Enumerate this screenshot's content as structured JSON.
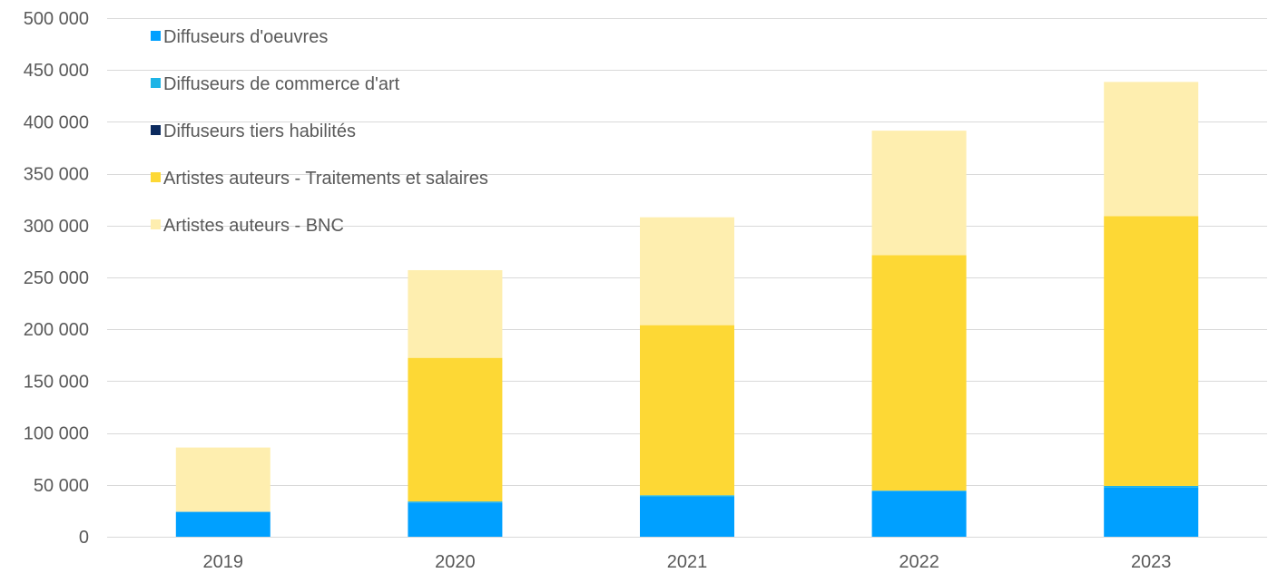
{
  "chart_data": {
    "type": "bar",
    "stacked": true,
    "categories": [
      "2019",
      "2020",
      "2021",
      "2022",
      "2023"
    ],
    "series": [
      {
        "name": "Diffuseurs d'oeuvres",
        "color": "#00A0FF",
        "values": [
          24000,
          33000,
          38500,
          44000,
          47500
        ]
      },
      {
        "name": "Diffuseurs de commerce d'art",
        "color": "#1EB4E6",
        "values": [
          0,
          1000,
          1500,
          500,
          1500
        ]
      },
      {
        "name": "Diffuseurs tiers habilités",
        "color": "#0B2A5E",
        "values": [
          0,
          0,
          0,
          0,
          0
        ]
      },
      {
        "name": "Artistes auteurs - Traitements et salaires",
        "color": "#FDD835",
        "values": [
          0,
          138500,
          164000,
          227000,
          260000
        ]
      },
      {
        "name": "Artistes auteurs - BNC",
        "color": "#FEEEAF",
        "values": [
          62000,
          84500,
          104000,
          120000,
          129500
        ]
      }
    ],
    "ylim": [
      0,
      500000
    ],
    "yticks": [
      0,
      50000,
      100000,
      150000,
      200000,
      250000,
      300000,
      350000,
      400000,
      450000,
      500000
    ],
    "ytick_labels": [
      "0",
      "50 000",
      "100 000",
      "150 000",
      "200 000",
      "250 000",
      "300 000",
      "350 000",
      "400 000",
      "450 000",
      "500 000"
    ],
    "grid": true,
    "legend_position": "top-left",
    "title": "",
    "xlabel": "",
    "ylabel": ""
  }
}
